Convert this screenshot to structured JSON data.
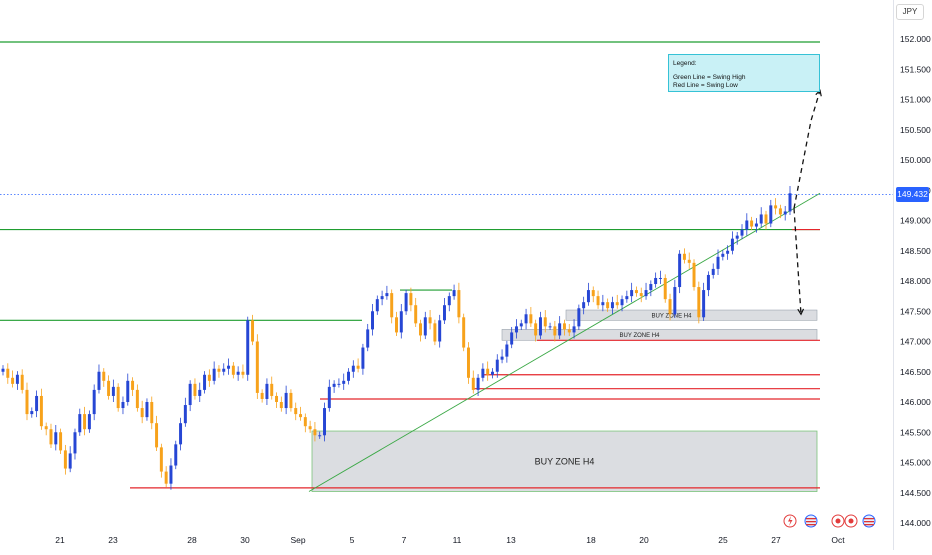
{
  "currency": "JPY",
  "last_price": "149.432",
  "legend": {
    "title": "Legend:",
    "lines": [
      "Green Line = Swing High",
      "Red Line = Swing Low"
    ]
  },
  "colors": {
    "up_candle": "#2646d4",
    "down_candle": "#f7a21b",
    "swing_high": "#1f9d30",
    "swing_low": "#e4262b",
    "trendline": "#3aa845",
    "zone_fill": "#d5d7dc",
    "legend_fill": "#c9f1f6",
    "price_tag": "#2962ff"
  },
  "chart_data": {
    "type": "candlestick",
    "y_range": [
      144.0,
      152.2
    ],
    "y_ticks": [
      "152.000",
      "151.500",
      "151.000",
      "150.500",
      "150.000",
      "149.500",
      "149.000",
      "148.500",
      "148.000",
      "147.500",
      "147.000",
      "146.500",
      "146.000",
      "145.500",
      "145.000",
      "144.500",
      "144.000"
    ],
    "x_ticks": [
      {
        "label": "21",
        "x": 60
      },
      {
        "label": "23",
        "x": 113
      },
      {
        "label": "28",
        "x": 192
      },
      {
        "label": "30",
        "x": 245
      },
      {
        "label": "Sep",
        "x": 298
      },
      {
        "label": "5",
        "x": 352
      },
      {
        "label": "7",
        "x": 404
      },
      {
        "label": "11",
        "x": 457
      },
      {
        "label": "13",
        "x": 511
      },
      {
        "label": "18",
        "x": 591
      },
      {
        "label": "20",
        "x": 644
      },
      {
        "label": "25",
        "x": 723
      },
      {
        "label": "27",
        "x": 776
      },
      {
        "label": "Oct",
        "x": 838
      }
    ],
    "closes": [
      146.55,
      146.4,
      146.3,
      146.45,
      146.2,
      145.8,
      145.85,
      146.1,
      145.6,
      145.55,
      145.3,
      145.5,
      145.2,
      144.9,
      145.15,
      145.5,
      145.8,
      145.55,
      145.8,
      146.2,
      146.5,
      146.35,
      146.1,
      146.25,
      145.9,
      146.0,
      146.35,
      146.2,
      145.9,
      145.75,
      146.0,
      145.65,
      145.25,
      144.85,
      144.65,
      144.95,
      145.3,
      145.65,
      145.95,
      146.3,
      146.1,
      146.2,
      146.45,
      146.35,
      146.55,
      146.5,
      146.55,
      146.6,
      146.45,
      146.5,
      146.45,
      147.35,
      147.0,
      146.15,
      146.05,
      146.3,
      146.1,
      146.0,
      145.9,
      146.15,
      145.9,
      145.8,
      145.75,
      145.6,
      145.55,
      145.45,
      145.45,
      145.9,
      146.25,
      146.3,
      146.3,
      146.35,
      146.5,
      146.6,
      146.55,
      146.9,
      147.2,
      147.5,
      147.7,
      147.75,
      147.8,
      147.4,
      147.15,
      147.5,
      147.8,
      147.6,
      147.3,
      147.1,
      147.4,
      147.3,
      147.0,
      147.35,
      147.6,
      147.75,
      147.85,
      147.4,
      146.9,
      146.4,
      146.2,
      146.4,
      146.55,
      146.45,
      146.5,
      146.7,
      146.75,
      146.95,
      147.15,
      147.25,
      147.3,
      147.45,
      147.3,
      147.1,
      147.4,
      147.25,
      147.25,
      147.1,
      147.3,
      147.2,
      147.15,
      147.25,
      147.55,
      147.65,
      147.85,
      147.75,
      147.6,
      147.65,
      147.55,
      147.65,
      147.6,
      147.7,
      147.75,
      147.85,
      147.8,
      147.75,
      147.85,
      147.95,
      148.05,
      148.05,
      147.7,
      147.45,
      147.9,
      148.45,
      148.35,
      148.3,
      147.9,
      147.4,
      147.85,
      148.1,
      148.2,
      148.4,
      148.45,
      148.5,
      148.7,
      148.75,
      148.85,
      149.0,
      148.9,
      148.95,
      149.1,
      148.95,
      149.25,
      149.2,
      149.1,
      149.15,
      149.45
    ],
    "swing_high_lines": [
      {
        "y": 151.95,
        "x1": 0,
        "x2": 820
      },
      {
        "y": 148.85,
        "x1": 0,
        "x2": 820
      },
      {
        "y": 147.35,
        "x1": 0,
        "x2": 362
      },
      {
        "y": 147.85,
        "x1": 400,
        "x2": 452
      }
    ],
    "swing_low_lines": [
      {
        "y": 144.58,
        "x1": 130,
        "x2": 820
      },
      {
        "y": 146.05,
        "x1": 320,
        "x2": 820
      },
      {
        "y": 146.22,
        "x1": 473,
        "x2": 820
      },
      {
        "y": 146.45,
        "x1": 484,
        "x2": 820
      },
      {
        "y": 147.02,
        "x1": 537,
        "x2": 820
      },
      {
        "y": 148.85,
        "x1": 792,
        "x2": 820
      }
    ],
    "trendline": {
      "x1": 309,
      "y1": 144.52,
      "x2": 820,
      "y2": 149.45
    },
    "zones": [
      {
        "label": "BUY ZONE H4",
        "y_top": 145.52,
        "y_bottom": 144.52,
        "x1": 312,
        "x2": 817
      },
      {
        "label": "BUY ZONE H4",
        "y_top": 147.52,
        "y_bottom": 147.35,
        "x1": 566,
        "x2": 817
      },
      {
        "label": "BUY ZONE H4",
        "y_top": 147.2,
        "y_bottom": 147.02,
        "x1": 502,
        "x2": 817
      }
    ],
    "projections": [
      {
        "points": [
          [
            794,
            149.2
          ],
          [
            811,
            150.65
          ],
          [
            820,
            151.15
          ]
        ]
      },
      {
        "points": [
          [
            794,
            149.2
          ],
          [
            801,
            147.45
          ]
        ]
      }
    ]
  }
}
